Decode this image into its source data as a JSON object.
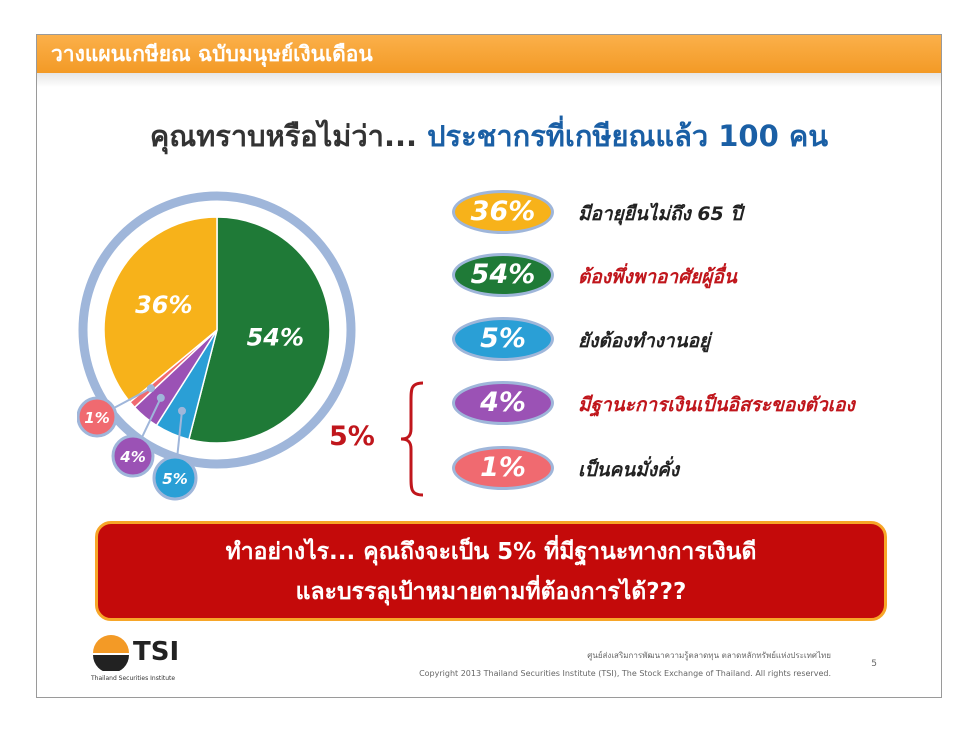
{
  "header": {
    "title": "วางแผนเกษียณ ฉบับมนุษย์เงินเดือน"
  },
  "headline": {
    "prefix": "คุณทราบหรือไม่ว่า...",
    "highlight": "ประชากรที่เกษียณแล้ว 100 คน"
  },
  "chart_data": {
    "type": "pie",
    "unit": "%",
    "slices": [
      {
        "value": 54,
        "label": "54%",
        "color": "#1f7a37"
      },
      {
        "value": 5,
        "label": "5%",
        "color": "#2a9fd6"
      },
      {
        "value": 4,
        "label": "4%",
        "color": "#9b52b5"
      },
      {
        "value": 1,
        "label": "1%",
        "color": "#f06a70"
      },
      {
        "value": 36,
        "label": "36%",
        "color": "#f7b21a"
      }
    ],
    "legend": [
      {
        "value": 36,
        "label": "36%",
        "text": "มีอายุยืนไม่ถึง 65 ปี",
        "color": "#f7b21a",
        "text_color": "#222222"
      },
      {
        "value": 54,
        "label": "54%",
        "text": "ต้องพึ่งพาอาศัยผู้อื่น",
        "color": "#1f7a37",
        "text_color": "#c0161c"
      },
      {
        "value": 5,
        "label": "5%",
        "text": "ยังต้องทำงานอยู่",
        "color": "#2a9fd6",
        "text_color": "#222222"
      },
      {
        "value": 4,
        "label": "4%",
        "text": "มีฐานะการเงินเป็นอิสระของตัวเอง",
        "color": "#9b52b5",
        "text_color": "#c0161c"
      },
      {
        "value": 1,
        "label": "1%",
        "text": "เป็นคนมั่งคั่ง",
        "color": "#f06a70",
        "text_color": "#222222"
      }
    ]
  },
  "bracket": {
    "label": "5%"
  },
  "cta": {
    "line1": "ทำอย่างไร... คุณถึงจะเป็น 5% ที่มีฐานะทางการเงินดี",
    "line2": "และบรรลุเป้าหมายตามที่ต้องการได้???"
  },
  "footer": {
    "logo_text": "TSI",
    "logo_sub": "Thailand Securities Institute",
    "line1": "ศูนย์ส่งเสริมการพัฒนาความรู้ตลาดทุน  ตลาดหลักทรัพย์แห่งประเทศไทย",
    "line2": "Copyright 2013 Thailand Securities Institute (TSI), The Stock Exchange of Thailand. All rights reserved.",
    "page_number": "5"
  }
}
